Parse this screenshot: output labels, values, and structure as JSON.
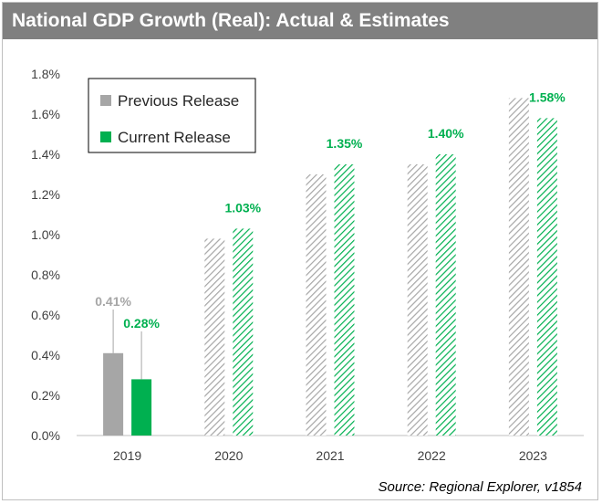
{
  "title": "National GDP Growth (Real): Actual & Estimates",
  "source": "Source: Regional Explorer, v1854",
  "colors": {
    "title_bar": "#808080",
    "previous": "#a6a6a6",
    "current": "#00b050",
    "current_label": "#00b050",
    "previous_label": "#a6a6a6"
  },
  "chart_data": {
    "type": "bar",
    "title": "National GDP Growth (Real): Actual & Estimates",
    "categories": [
      "2019",
      "2020",
      "2021",
      "2022",
      "2023"
    ],
    "ylim": [
      0,
      1.8
    ],
    "yticks": [
      "0.0%",
      "0.2%",
      "0.4%",
      "0.6%",
      "0.8%",
      "1.0%",
      "1.2%",
      "1.4%",
      "1.6%",
      "1.8%"
    ],
    "grid": false,
    "legend_position": "top-left",
    "series": [
      {
        "name": "Previous Release",
        "values": [
          0.41,
          0.98,
          1.3,
          1.35,
          1.68
        ],
        "fill": [
          "solid",
          "hatched",
          "hatched",
          "hatched",
          "hatched"
        ],
        "labels": [
          "0.41%",
          "",
          "",
          "",
          ""
        ]
      },
      {
        "name": "Current Release",
        "values": [
          0.28,
          1.03,
          1.35,
          1.4,
          1.58
        ],
        "fill": [
          "solid",
          "hatched",
          "hatched",
          "hatched",
          "hatched"
        ],
        "labels": [
          "0.28%",
          "1.03%",
          "1.35%",
          "1.40%",
          "1.58%"
        ]
      }
    ]
  }
}
